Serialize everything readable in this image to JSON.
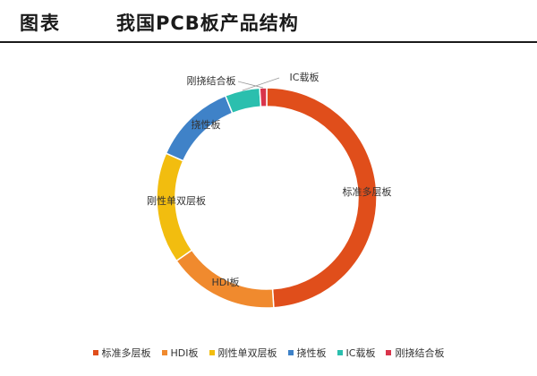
{
  "header": {
    "label": "图表",
    "title": "我国PCB板产品结构"
  },
  "chart_data": {
    "type": "donut",
    "title": "我国PCB板产品结构",
    "slices": [
      {
        "name": "标准多层板",
        "value": 0.48,
        "color": "#E04E1B"
      },
      {
        "name": "HDI板",
        "value": 0.16,
        "color": "#F08A2E"
      },
      {
        "name": "刚性单双层板",
        "value": 0.16,
        "color": "#F2BD0F"
      },
      {
        "name": "挠性板",
        "value": 0.12,
        "color": "#3F82C8"
      },
      {
        "name": "IC载板",
        "value": 0.05,
        "color": "#2BBFAE"
      },
      {
        "name": "刚挠结合板",
        "value": 0.01,
        "color": "#D9344B"
      }
    ],
    "legend_position": "bottom"
  }
}
